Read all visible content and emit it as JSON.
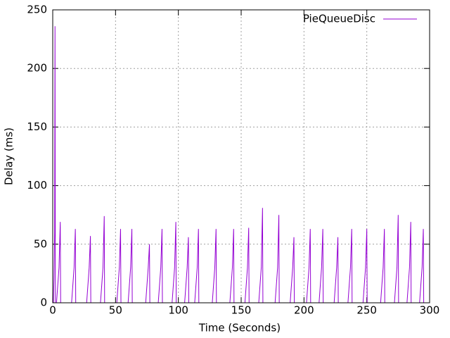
{
  "chart_data": {
    "type": "line",
    "x_label": "Time (Seconds)",
    "y_label": "Delay (ms)",
    "x": [
      0.5,
      1,
      1.5,
      1.8,
      2.1,
      3,
      4,
      5,
      6,
      6.3,
      15,
      16,
      17,
      18,
      18.3,
      27,
      28,
      29,
      30,
      30.3,
      38,
      39,
      40,
      41,
      41.3,
      51,
      52,
      53,
      54,
      54.3,
      60,
      61,
      62,
      63,
      63.3,
      74,
      75,
      76,
      77,
      77.3,
      84,
      85,
      86,
      87,
      87.3,
      95,
      96,
      97,
      98,
      98.3,
      105,
      106,
      107,
      108,
      108.3,
      113,
      114,
      115,
      116,
      116.3,
      127,
      128,
      129,
      130,
      130.3,
      141,
      142,
      143,
      144,
      144.3,
      153,
      154,
      155,
      156,
      156.3,
      164,
      165,
      166,
      167,
      167.3,
      177,
      178,
      179,
      180,
      180.3,
      189,
      190,
      191,
      192,
      192.3,
      202,
      203,
      204,
      205,
      205.3,
      212,
      213,
      214,
      215,
      215.3,
      224,
      225,
      226,
      227,
      227.3,
      235,
      236,
      237,
      238,
      238.3,
      247,
      248,
      249,
      250,
      250.3,
      261,
      262,
      263,
      264,
      264.3,
      272,
      273,
      274,
      275,
      275.3,
      282,
      283,
      284,
      285,
      285.3,
      292,
      293,
      294,
      295,
      295.3
    ],
    "series": [
      {
        "name": "PieQueueDisc",
        "color": "#9400d3",
        "values": [
          0,
          20,
          60,
          236,
          0,
          0,
          15,
          30,
          69,
          0,
          0,
          15,
          30,
          63,
          0,
          0,
          15,
          30,
          57,
          0,
          0,
          15,
          30,
          74,
          0,
          0,
          15,
          30,
          63,
          0,
          0,
          15,
          30,
          63,
          0,
          0,
          15,
          30,
          50,
          0,
          0,
          15,
          30,
          63,
          0,
          0,
          15,
          30,
          69,
          0,
          0,
          15,
          30,
          56,
          0,
          0,
          15,
          30,
          63,
          0,
          0,
          15,
          30,
          63,
          0,
          0,
          15,
          30,
          63,
          0,
          0,
          15,
          30,
          64,
          0,
          0,
          15,
          30,
          81,
          0,
          0,
          15,
          30,
          75,
          0,
          0,
          15,
          30,
          56,
          0,
          0,
          15,
          30,
          63,
          0,
          0,
          15,
          30,
          63,
          0,
          0,
          15,
          30,
          56,
          0,
          0,
          15,
          30,
          63,
          0,
          0,
          15,
          30,
          63,
          0,
          0,
          15,
          30,
          63,
          0,
          0,
          15,
          30,
          75,
          0,
          0,
          15,
          30,
          69,
          0,
          0,
          15,
          30,
          63,
          0
        ]
      }
    ],
    "xlim": [
      0,
      300
    ],
    "xticks": [
      0,
      50,
      100,
      150,
      200,
      250,
      300
    ],
    "ylim": [
      0,
      250
    ],
    "yticks": [
      0,
      50,
      100,
      150,
      200,
      250
    ],
    "grid": true,
    "legend": "top-right"
  }
}
